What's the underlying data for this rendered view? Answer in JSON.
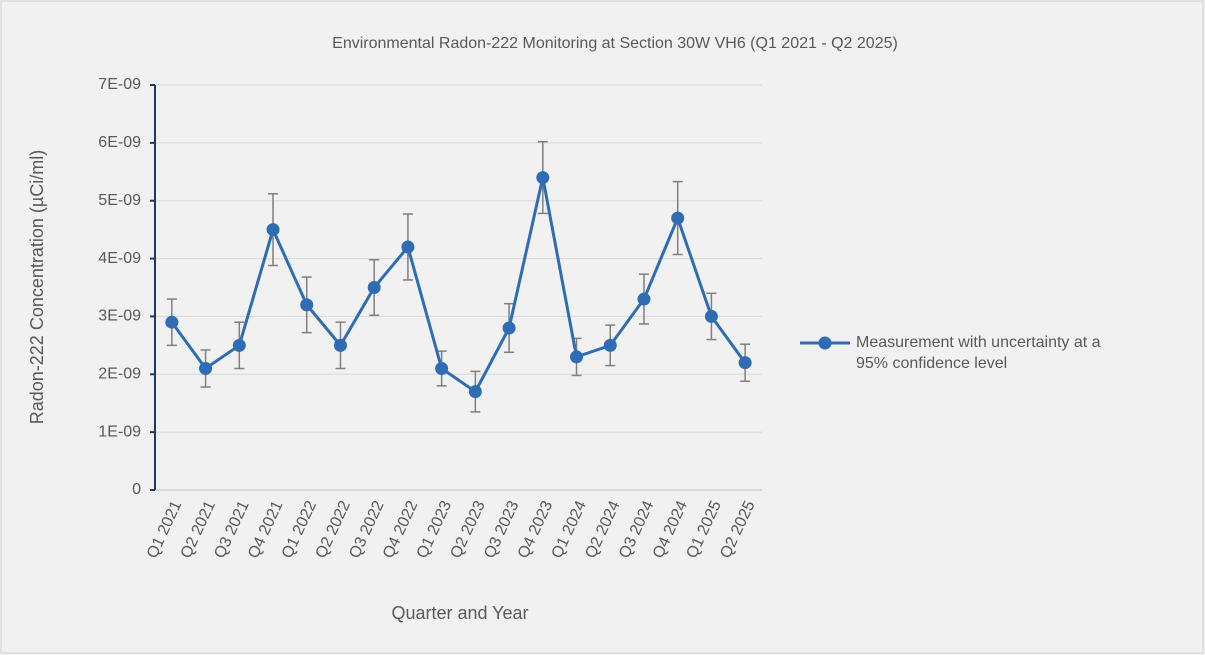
{
  "chart_data": {
    "type": "line",
    "title": "Environmental Radon-222 Monitoring at Section 30W VH6 (Q1 2021 - Q2 2025)",
    "x_label": "Quarter and Year",
    "y_label": "Radon-222 Concentration (µCi/ml)",
    "categories": [
      "Q1 2021",
      "Q2 2021",
      "Q3 2021",
      "Q4 2021",
      "Q1 2022",
      "Q2 2022",
      "Q3 2022",
      "Q4 2022",
      "Q1 2023",
      "Q2 2023",
      "Q3 2023",
      "Q4 2023",
      "Q1 2024",
      "Q2 2024",
      "Q3 2024",
      "Q4 2024",
      "Q1 2025",
      "Q2 2025"
    ],
    "series": [
      {
        "name": "Measurement with uncertainty at a 95% confidence level",
        "color": "#2e6db4",
        "values": [
          2.9e-09,
          2.1e-09,
          2.5e-09,
          4.5e-09,
          3.2e-09,
          2.5e-09,
          3.5e-09,
          4.2e-09,
          2.1e-09,
          1.7e-09,
          2.8e-09,
          5.4e-09,
          2.3e-09,
          2.5e-09,
          3.3e-09,
          4.7e-09,
          3e-09,
          2.2e-09
        ],
        "errors": [
          4e-10,
          3.2e-10,
          4e-10,
          6.2e-10,
          4.8e-10,
          4e-10,
          4.8e-10,
          5.7e-10,
          3e-10,
          3.5e-10,
          4.2e-10,
          6.2e-10,
          3.2e-10,
          3.5e-10,
          4.3e-10,
          6.3e-10,
          4e-10,
          3.2e-10
        ]
      }
    ],
    "ylim": [
      0,
      7e-09
    ],
    "yticks": [
      0,
      {
        "value": 1e-09,
        "label": "1E-09"
      },
      {
        "value": 2e-09,
        "label": "2E-09"
      },
      {
        "value": 3e-09,
        "label": "3E-09"
      },
      {
        "value": 4e-09,
        "label": "4E-09"
      },
      {
        "value": 5e-09,
        "label": "5E-09"
      },
      {
        "value": 6e-09,
        "label": "6E-09"
      },
      {
        "value": 7e-09,
        "label": "7E-09"
      }
    ],
    "grid": true,
    "error_bar_color": "#7f7f7f",
    "legend_position": "right"
  }
}
